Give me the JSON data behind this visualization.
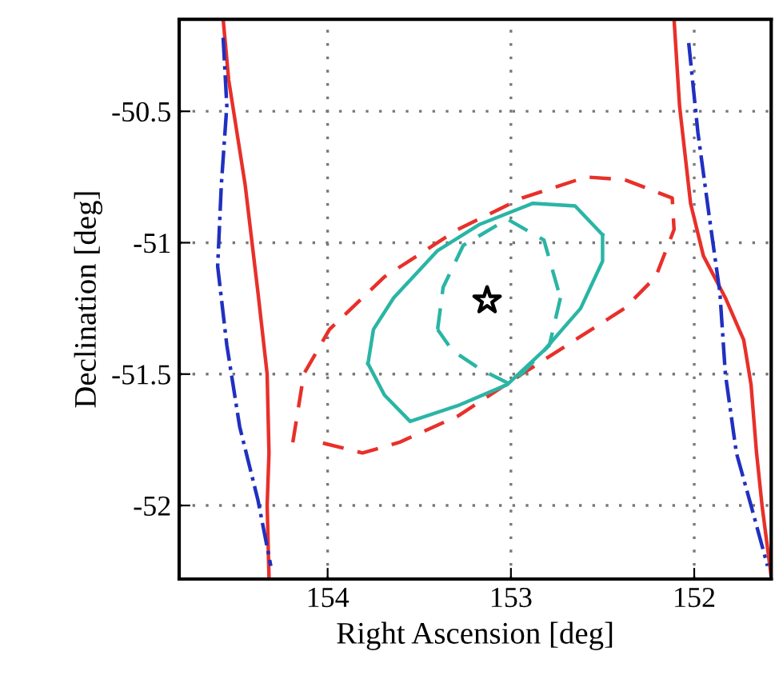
{
  "chart_data": {
    "type": "line",
    "xlabel": "Right Ascension [deg]",
    "ylabel": "Declination [deg]",
    "xlim": [
      154.81,
      151.58
    ],
    "ylim": [
      -52.28,
      -50.15
    ],
    "xticks": [
      154,
      153,
      152
    ],
    "yticks": [
      -50.5,
      -51,
      -51.5,
      -52
    ],
    "grid": true,
    "series": [
      {
        "color": "#e8302a",
        "line_style": "solid",
        "x": [
          154.57,
          154.54,
          154.45,
          154.38,
          154.33,
          154.32,
          154.33,
          154.32
        ],
        "values": [
          -50.15,
          -50.38,
          -50.78,
          -51.19,
          -51.5,
          -51.8,
          -52.0,
          -52.27
        ]
      },
      {
        "color": "#2030c0",
        "line_style": "dotted",
        "x": [
          154.57,
          154.55,
          154.58,
          154.6,
          154.55,
          154.48,
          154.38,
          154.31
        ],
        "values": [
          -50.22,
          -50.48,
          -50.78,
          -51.09,
          -51.39,
          -51.7,
          -51.98,
          -52.23
        ]
      },
      {
        "color": "#e8302a",
        "line_style": "solid",
        "x": [
          152.11,
          152.08,
          152.02,
          151.95,
          151.83,
          151.73,
          151.69,
          151.66,
          151.63,
          151.58
        ],
        "values": [
          -50.15,
          -50.48,
          -50.85,
          -51.05,
          -51.21,
          -51.37,
          -51.54,
          -51.8,
          -52.0,
          -52.27
        ]
      },
      {
        "color": "#2030c0",
        "line_style": "dotted",
        "x": [
          152.03,
          151.98,
          151.92,
          151.86,
          151.83,
          151.77,
          151.69,
          151.6
        ],
        "values": [
          -50.24,
          -50.58,
          -50.89,
          -51.19,
          -51.5,
          -51.8,
          -52.0,
          -52.23
        ]
      },
      {
        "color": "#e8302a",
        "line_style": "dashed",
        "x": [
          154.19,
          154.13,
          153.99,
          153.69,
          153.29,
          152.94,
          152.59,
          152.38,
          152.12,
          152.11,
          152.21,
          152.38,
          152.65,
          152.94,
          153.29,
          153.61,
          153.81,
          154.04
        ],
        "values": [
          -51.76,
          -51.5,
          -51.33,
          -51.13,
          -50.95,
          -50.83,
          -50.75,
          -50.76,
          -50.83,
          -50.95,
          -51.13,
          -51.25,
          -51.37,
          -51.5,
          -51.66,
          -51.76,
          -51.8,
          -51.76
        ]
      },
      {
        "color": "#2ab5a5",
        "line_style": "solid",
        "x": [
          153.78,
          153.75,
          153.64,
          153.4,
          153.17,
          152.88,
          152.65,
          152.5
        ],
        "values": [
          -51.46,
          -51.33,
          -51.21,
          -51.03,
          -50.93,
          -50.85,
          -50.86,
          -50.97
        ]
      },
      {
        "color": "#2ab5a5",
        "line_style": "solid",
        "x": [
          152.5,
          152.5,
          152.62,
          152.82,
          153.02,
          153.29,
          153.55,
          153.69,
          153.78
        ],
        "values": [
          -50.97,
          -51.07,
          -51.25,
          -51.41,
          -51.54,
          -51.62,
          -51.68,
          -51.58,
          -51.46
        ]
      },
      {
        "color": "#2ab5a5",
        "line_style": "dashed",
        "x": [
          153.4,
          153.37,
          153.26,
          153.02,
          152.82,
          152.73
        ],
        "values": [
          -51.33,
          -51.17,
          -51.01,
          -50.91,
          -50.99,
          -51.21
        ]
      },
      {
        "color": "#2ab5a5",
        "line_style": "dashed",
        "x": [
          152.73,
          152.79,
          153.0,
          153.17,
          153.32,
          153.4
        ],
        "values": [
          -51.21,
          -51.39,
          -51.54,
          -51.48,
          -51.41,
          -51.33
        ]
      },
      {
        "type": "scatter",
        "color": "#000000",
        "marker": "star",
        "x": [
          153.13
        ],
        "values": [
          -51.22
        ]
      }
    ]
  }
}
